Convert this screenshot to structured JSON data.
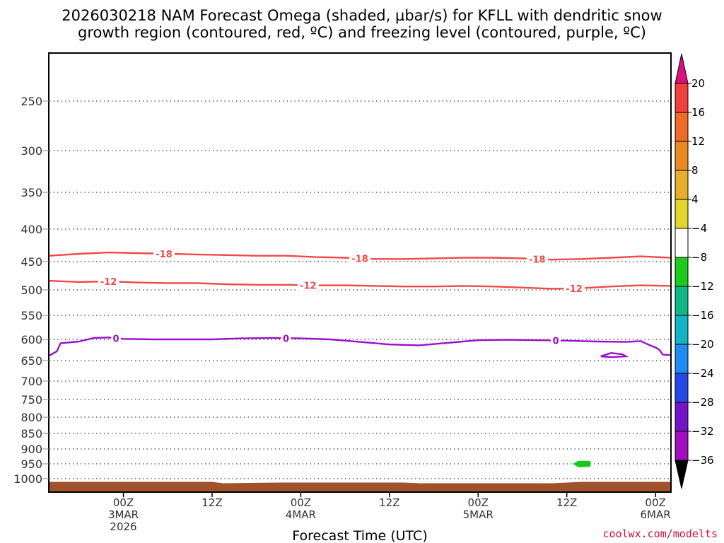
{
  "chart_data": {
    "type": "heatmap",
    "title_lines": [
      "2026030218 NAM Forecast Omega (shaded, µbar/s) for KFLL with dendritic snow",
      "growth region (contoured, red, ºC) and freezing level (contoured, purple, ºC)"
    ],
    "xlabel": "Forecast Time (UTC)",
    "ylabel": "",
    "credit": "coolwx.com/modelts",
    "x_range_hours": [
      -4,
      80
    ],
    "pressure_range": [
      1040,
      200
    ],
    "y_ticks": [
      250,
      300,
      350,
      400,
      450,
      500,
      550,
      600,
      650,
      700,
      750,
      800,
      850,
      900,
      950,
      1000
    ],
    "y_tick_labels": [
      "250",
      "300",
      "350",
      "400",
      "450",
      "500",
      "550",
      "600",
      "650",
      "700",
      "750",
      "800",
      "850",
      "900",
      "950",
      "1000"
    ],
    "x_ticks": [
      {
        "hour": 6,
        "lines": [
          "00Z",
          "3MAR",
          "2026"
        ]
      },
      {
        "hour": 18,
        "lines": [
          "12Z"
        ]
      },
      {
        "hour": 30,
        "lines": [
          "00Z",
          "4MAR"
        ]
      },
      {
        "hour": 42,
        "lines": [
          "12Z"
        ]
      },
      {
        "hour": 54,
        "lines": [
          "00Z",
          "5MAR"
        ]
      },
      {
        "hour": 66,
        "lines": [
          "12Z"
        ]
      },
      {
        "hour": 78,
        "lines": [
          "00Z",
          "6MAR"
        ]
      }
    ],
    "series": [
      {
        "name": "-18 C isotherm",
        "kind": "dgz",
        "label": "-18",
        "color": "#f04848",
        "label_hours": [
          11.5,
          38,
          62
        ],
        "points": [
          [
            -4,
            441
          ],
          [
            0,
            438
          ],
          [
            4,
            436
          ],
          [
            8,
            437
          ],
          [
            12,
            438
          ],
          [
            16,
            439
          ],
          [
            20,
            440
          ],
          [
            24,
            441
          ],
          [
            28,
            441
          ],
          [
            32,
            443
          ],
          [
            36,
            444
          ],
          [
            40,
            446
          ],
          [
            44,
            446
          ],
          [
            48,
            445
          ],
          [
            52,
            444
          ],
          [
            56,
            444
          ],
          [
            60,
            445
          ],
          [
            64,
            447
          ],
          [
            68,
            446
          ],
          [
            72,
            444
          ],
          [
            76,
            442
          ],
          [
            80,
            444
          ]
        ]
      },
      {
        "name": "-12 C isotherm",
        "kind": "dgz",
        "label": "-12",
        "color": "#f04848",
        "label_hours": [
          4,
          31,
          67
        ],
        "points": [
          [
            -4,
            484
          ],
          [
            0,
            486
          ],
          [
            4,
            485
          ],
          [
            8,
            487
          ],
          [
            12,
            488
          ],
          [
            16,
            488
          ],
          [
            20,
            490
          ],
          [
            24,
            491
          ],
          [
            28,
            491
          ],
          [
            32,
            492
          ],
          [
            36,
            492
          ],
          [
            40,
            493
          ],
          [
            44,
            494
          ],
          [
            48,
            494
          ],
          [
            52,
            493
          ],
          [
            56,
            494
          ],
          [
            60,
            496
          ],
          [
            64,
            498
          ],
          [
            68,
            497
          ],
          [
            72,
            494
          ],
          [
            76,
            492
          ],
          [
            80,
            493
          ]
        ]
      },
      {
        "name": "0 C freezing level",
        "kind": "freezing",
        "label": "0",
        "color": "#9a10c8",
        "label_hours": [
          5,
          28,
          64.5
        ],
        "points": [
          [
            -4,
            638
          ],
          [
            -3,
            628
          ],
          [
            -2.5,
            609
          ],
          [
            0,
            605
          ],
          [
            2,
            597
          ],
          [
            4,
            596
          ],
          [
            6,
            599
          ],
          [
            10,
            600
          ],
          [
            14,
            600
          ],
          [
            18,
            600
          ],
          [
            22,
            598
          ],
          [
            26,
            597
          ],
          [
            30,
            598
          ],
          [
            34,
            600
          ],
          [
            38,
            606
          ],
          [
            42,
            612
          ],
          [
            46,
            614
          ],
          [
            50,
            608
          ],
          [
            54,
            602
          ],
          [
            58,
            601
          ],
          [
            62,
            602
          ],
          [
            66,
            603
          ],
          [
            70,
            605
          ],
          [
            74,
            606
          ],
          [
            76,
            604
          ],
          [
            77,
            612
          ],
          [
            78,
            619
          ],
          [
            78.5,
            624
          ],
          [
            79,
            636
          ],
          [
            80,
            637
          ]
        ],
        "closed_contour": [
          [
            70.6,
            640
          ],
          [
            72,
            632
          ],
          [
            73.5,
            635
          ],
          [
            74,
            640
          ],
          [
            72,
            642
          ],
          [
            70.6,
            640
          ]
        ]
      }
    ],
    "omega_shading": [
      {
        "value": -8,
        "color": "#16c81a",
        "hours": [
          66.8,
          67.6,
          69.2
        ],
        "pressures": [
          950,
          945,
          940
        ]
      }
    ],
    "surface_fill": {
      "color": "#a0522d",
      "top_pressure": 1010
    },
    "colorbar": {
      "levels": [
        20,
        16,
        12,
        8,
        4,
        -4,
        -8,
        -12,
        -16,
        -20,
        -24,
        -28,
        -32,
        -36
      ],
      "labels": [
        "20",
        "16",
        "12",
        "8",
        "4",
        "−4",
        "−8",
        "−12",
        "−16",
        "−20",
        "−24",
        "−28",
        "−32",
        "−36"
      ],
      "colors": [
        "#f04040",
        "#f06a28",
        "#e88a20",
        "#e6ae2a",
        "#e2d62a",
        "#ffffff",
        "#1ccc1c",
        "#0fb888",
        "#14b4c8",
        "#1e8cf0",
        "#2848e8",
        "#7814c8",
        "#a010c0",
        "#a0a0a0"
      ],
      "top_arrow_color": "#e0107c",
      "bottom_arrow_color": "#000000"
    }
  }
}
